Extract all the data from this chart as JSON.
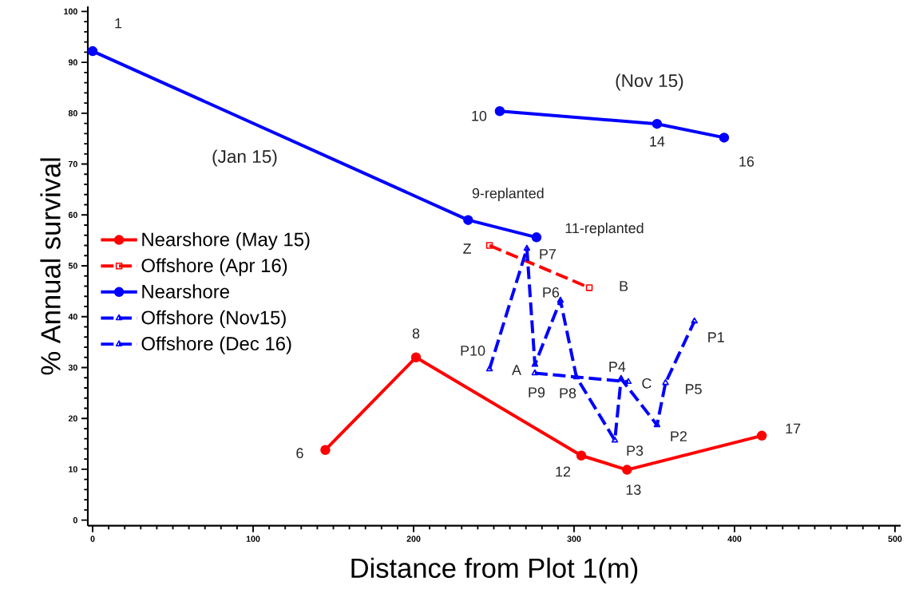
{
  "chart_data": {
    "type": "line",
    "xlabel": "Distance from Plot 1(m)",
    "ylabel": "% Annual survival",
    "xlim": [
      -3,
      503.5
    ],
    "ylim": [
      -1.1,
      101
    ],
    "xticks": [
      0,
      100,
      200,
      300,
      400,
      500
    ],
    "yticks": [
      0,
      10,
      20,
      30,
      40,
      50,
      60,
      70,
      80,
      90,
      100
    ],
    "grid": false,
    "legend": "left",
    "series": [
      {
        "name": "Nearshore (May 15)",
        "color": "#ff0000",
        "marker": "circle",
        "line_style": "solid",
        "x": [
          145,
          201.5,
          304.5,
          333,
          417
        ],
        "values": [
          13.8,
          32,
          12.7,
          9.9,
          16.6
        ]
      },
      {
        "name": "Offshore (Apr 16)",
        "color": "#ff0000",
        "marker": "square",
        "line_style": "dashed",
        "x": [
          247.3,
          309.5
        ],
        "values": [
          54,
          45.7
        ]
      },
      {
        "name": "Nearshore",
        "color": "#0000ff",
        "marker": "circle",
        "line_style": "solid",
        "x": [
          0,
          234,
          276.6
        ],
        "values": [
          92.2,
          59,
          55.6
        ]
      },
      {
        "color": "#0000ff",
        "marker": "circle",
        "line_style": "solid",
        "x": [
          253.7,
          351.7,
          393.5
        ],
        "values": [
          80.4,
          77.9,
          75.2
        ]
      },
      {
        "name": "Offshore (Nov15)",
        "color": "#0000ff",
        "marker": "triangle",
        "line_style": "dashed",
        "x": [
          275.6,
          333.8
        ],
        "values": [
          28.9,
          27.2
        ]
      },
      {
        "name": "Offshore (Dec 16)",
        "color": "#0000ff",
        "marker": "triangle",
        "line_style": "dashed",
        "x": [
          247.3,
          270.6,
          275.6,
          291.5,
          301.5,
          325.4,
          329.3,
          351.7,
          357,
          375
        ],
        "values": [
          29.7,
          53.4,
          30.6,
          43.2,
          28.1,
          15.7,
          27.8,
          18.7,
          27,
          39.1
        ]
      }
    ],
    "annotations": [
      {
        "text": "1",
        "x": 0,
        "y": 92.2
      },
      {
        "text": "8",
        "x": 201.5,
        "y": 32
      },
      {
        "text": "6",
        "x": 145,
        "y": 13.8
      },
      {
        "text": "12",
        "x": 304.5,
        "y": 12.7
      },
      {
        "text": "13",
        "x": 333,
        "y": 9.9
      },
      {
        "text": "17",
        "x": 417,
        "y": 16.6
      },
      {
        "text": "9-replanted",
        "x": 234,
        "y": 59
      },
      {
        "text": "11-replanted",
        "x": 276.6,
        "y": 55.6
      },
      {
        "text": "10",
        "x": 253.7,
        "y": 80.4
      },
      {
        "text": "14",
        "x": 351.7,
        "y": 77.9
      },
      {
        "text": "16",
        "x": 393.5,
        "y": 75.2
      },
      {
        "text": "Z",
        "x": 247.3,
        "y": 54
      },
      {
        "text": "B",
        "x": 309.5,
        "y": 45.7
      },
      {
        "text": "A",
        "x": 275.6,
        "y": 28.9
      },
      {
        "text": "C",
        "x": 333.8,
        "y": 27.2
      },
      {
        "text": "P10",
        "x": 247.3,
        "y": 29.7
      },
      {
        "text": "P7",
        "x": 270.6,
        "y": 53.4
      },
      {
        "text": "P9",
        "x": 275.6,
        "y": 30.6
      },
      {
        "text": "P6",
        "x": 291.5,
        "y": 43.2
      },
      {
        "text": "P8",
        "x": 301.5,
        "y": 28.1
      },
      {
        "text": "P3",
        "x": 325.4,
        "y": 15.7
      },
      {
        "text": "P4",
        "x": 329.3,
        "y": 27.8
      },
      {
        "text": "P2",
        "x": 351.7,
        "y": 18.7
      },
      {
        "text": "P5",
        "x": 357,
        "y": 27
      },
      {
        "text": "P1",
        "x": 375,
        "y": 39.1
      },
      "(Jan 15)",
      "(Nov 15)"
    ]
  }
}
